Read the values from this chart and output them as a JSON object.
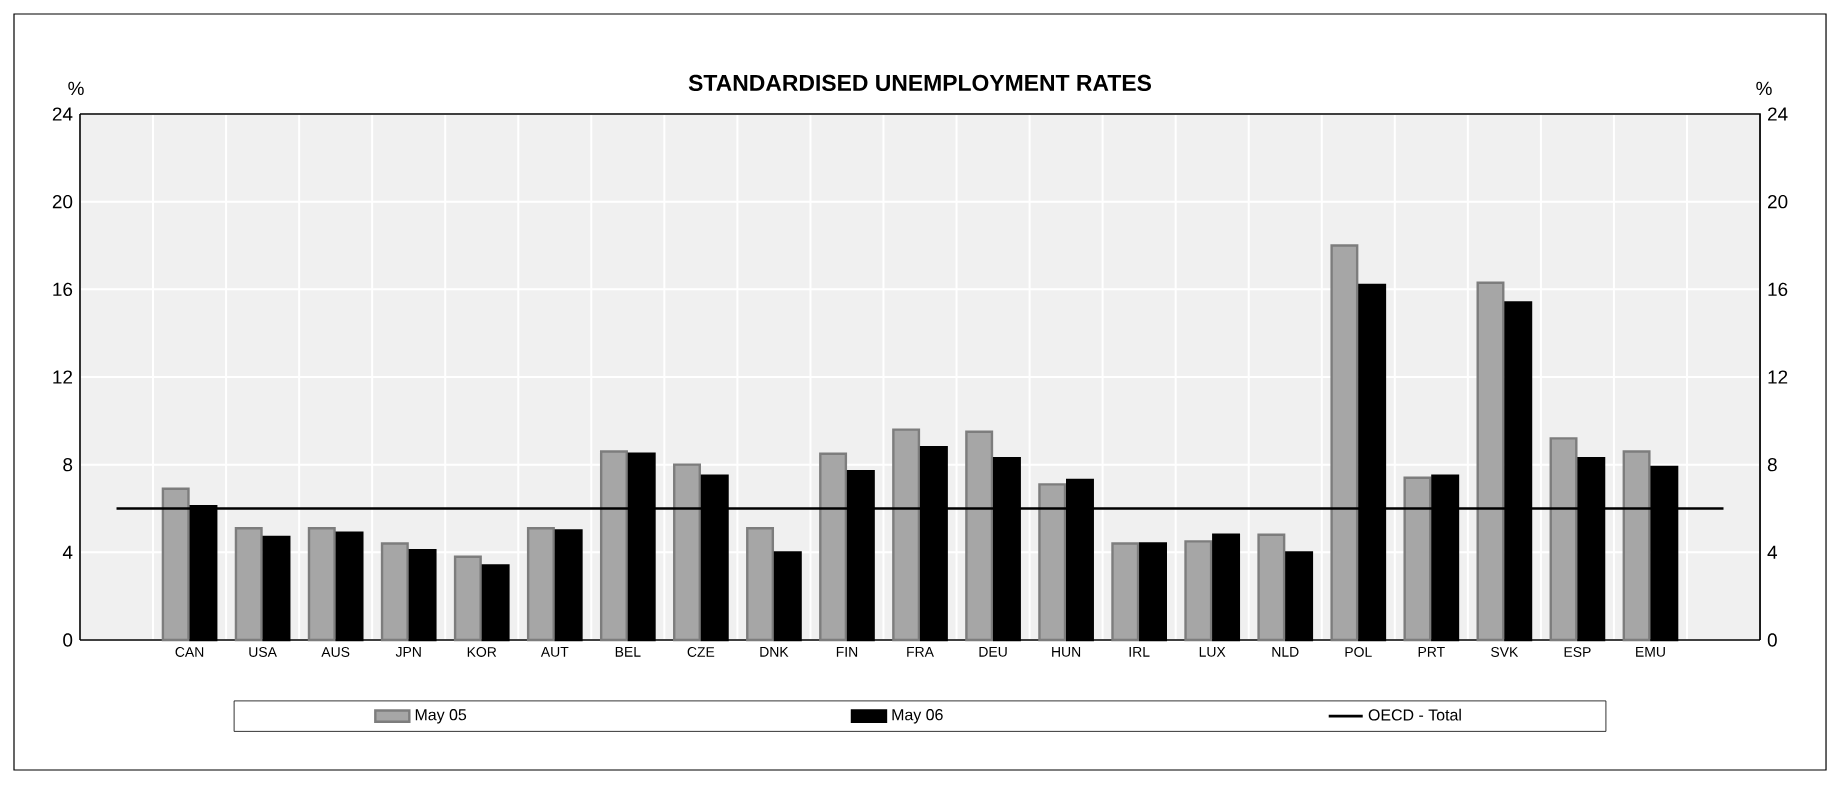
{
  "chart_data": {
    "type": "bar",
    "title": "STANDARDISED UNEMPLOYMENT RATES",
    "ylabel": "%",
    "y2label": "%",
    "categories": [
      null,
      "CAN",
      "USA",
      "AUS",
      "JPN",
      "KOR",
      "AUT",
      "BEL",
      "CZE",
      "DNK",
      "FIN",
      "FRA",
      "DEU",
      "HUN",
      "IRL",
      "LUX",
      "NLD",
      "POL",
      "PRT",
      "SVK",
      "ESP",
      "EMU",
      null
    ],
    "series": [
      {
        "name": "May 05",
        "color": "#a6a6a6",
        "values": [
          null,
          6.9,
          5.1,
          5.1,
          4.4,
          3.8,
          5.1,
          8.6,
          8.0,
          5.1,
          8.5,
          9.6,
          9.5,
          7.1,
          4.4,
          4.5,
          4.8,
          18.0,
          7.4,
          16.3,
          9.2,
          8.6,
          null
        ]
      },
      {
        "name": "May 06",
        "color": "#000000",
        "values": [
          null,
          6.1,
          4.7,
          4.9,
          4.1,
          3.4,
          5.0,
          8.5,
          7.5,
          4.0,
          7.7,
          8.8,
          8.3,
          7.3,
          4.4,
          4.8,
          4.0,
          16.2,
          7.5,
          15.4,
          8.3,
          7.9,
          null
        ]
      },
      {
        "name": "OECD - Total",
        "type": "line",
        "color": "#000000",
        "values": [
          6.0,
          6.0,
          6.0,
          6.0,
          6.0,
          6.0,
          6.0,
          6.0,
          6.0,
          6.0,
          6.0,
          6.0,
          6.0,
          6.0,
          6.0,
          6.0,
          6.0,
          6.0,
          6.0,
          6.0,
          6.0,
          6.0,
          6.0
        ]
      }
    ],
    "ylim": [
      0,
      24
    ],
    "yticks": [
      0,
      4,
      8,
      12,
      16,
      20,
      24
    ],
    "y2lim": [
      0,
      24
    ],
    "y2ticks": [
      0,
      4,
      8,
      12,
      16,
      20,
      24
    ],
    "grid": true,
    "legend": "bottom"
  }
}
